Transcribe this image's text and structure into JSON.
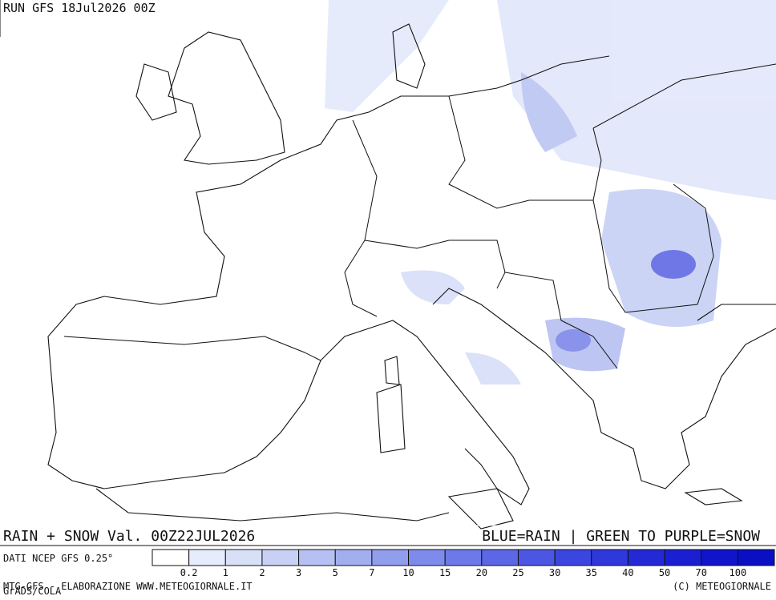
{
  "header": {
    "run": "RUN GFS 18Jul2026 00Z"
  },
  "footer": {
    "title": "RAIN + SNOW Val. 00Z22JUL2026",
    "key": "BLUE=RAIN | GREEN TO PURPLE=SNOW",
    "source": "DATI NCEP GFS 0.25°",
    "credit": "MTG-GFS - ELABORAZIONE WWW.METEOGIORNALE.IT",
    "software": "GrADS/COLA",
    "copyright": "(C) METEOGIORNALE"
  },
  "legend": {
    "thresholds": [
      0.2,
      1,
      2,
      3,
      5,
      7,
      10,
      15,
      20,
      25,
      30,
      35,
      40,
      50,
      70,
      100
    ],
    "colors": [
      "#ffffff",
      "#e6ecfb",
      "#d8e0f8",
      "#c8d1f5",
      "#b6c0f2",
      "#a3aeef",
      "#919ded",
      "#7f8bea",
      "#6d79e8",
      "#5c67e5",
      "#4b56e2",
      "#3b45df",
      "#2f38db",
      "#2429d6",
      "#1a1fd2",
      "#1015cc",
      "#0a0fc4"
    ]
  }
}
